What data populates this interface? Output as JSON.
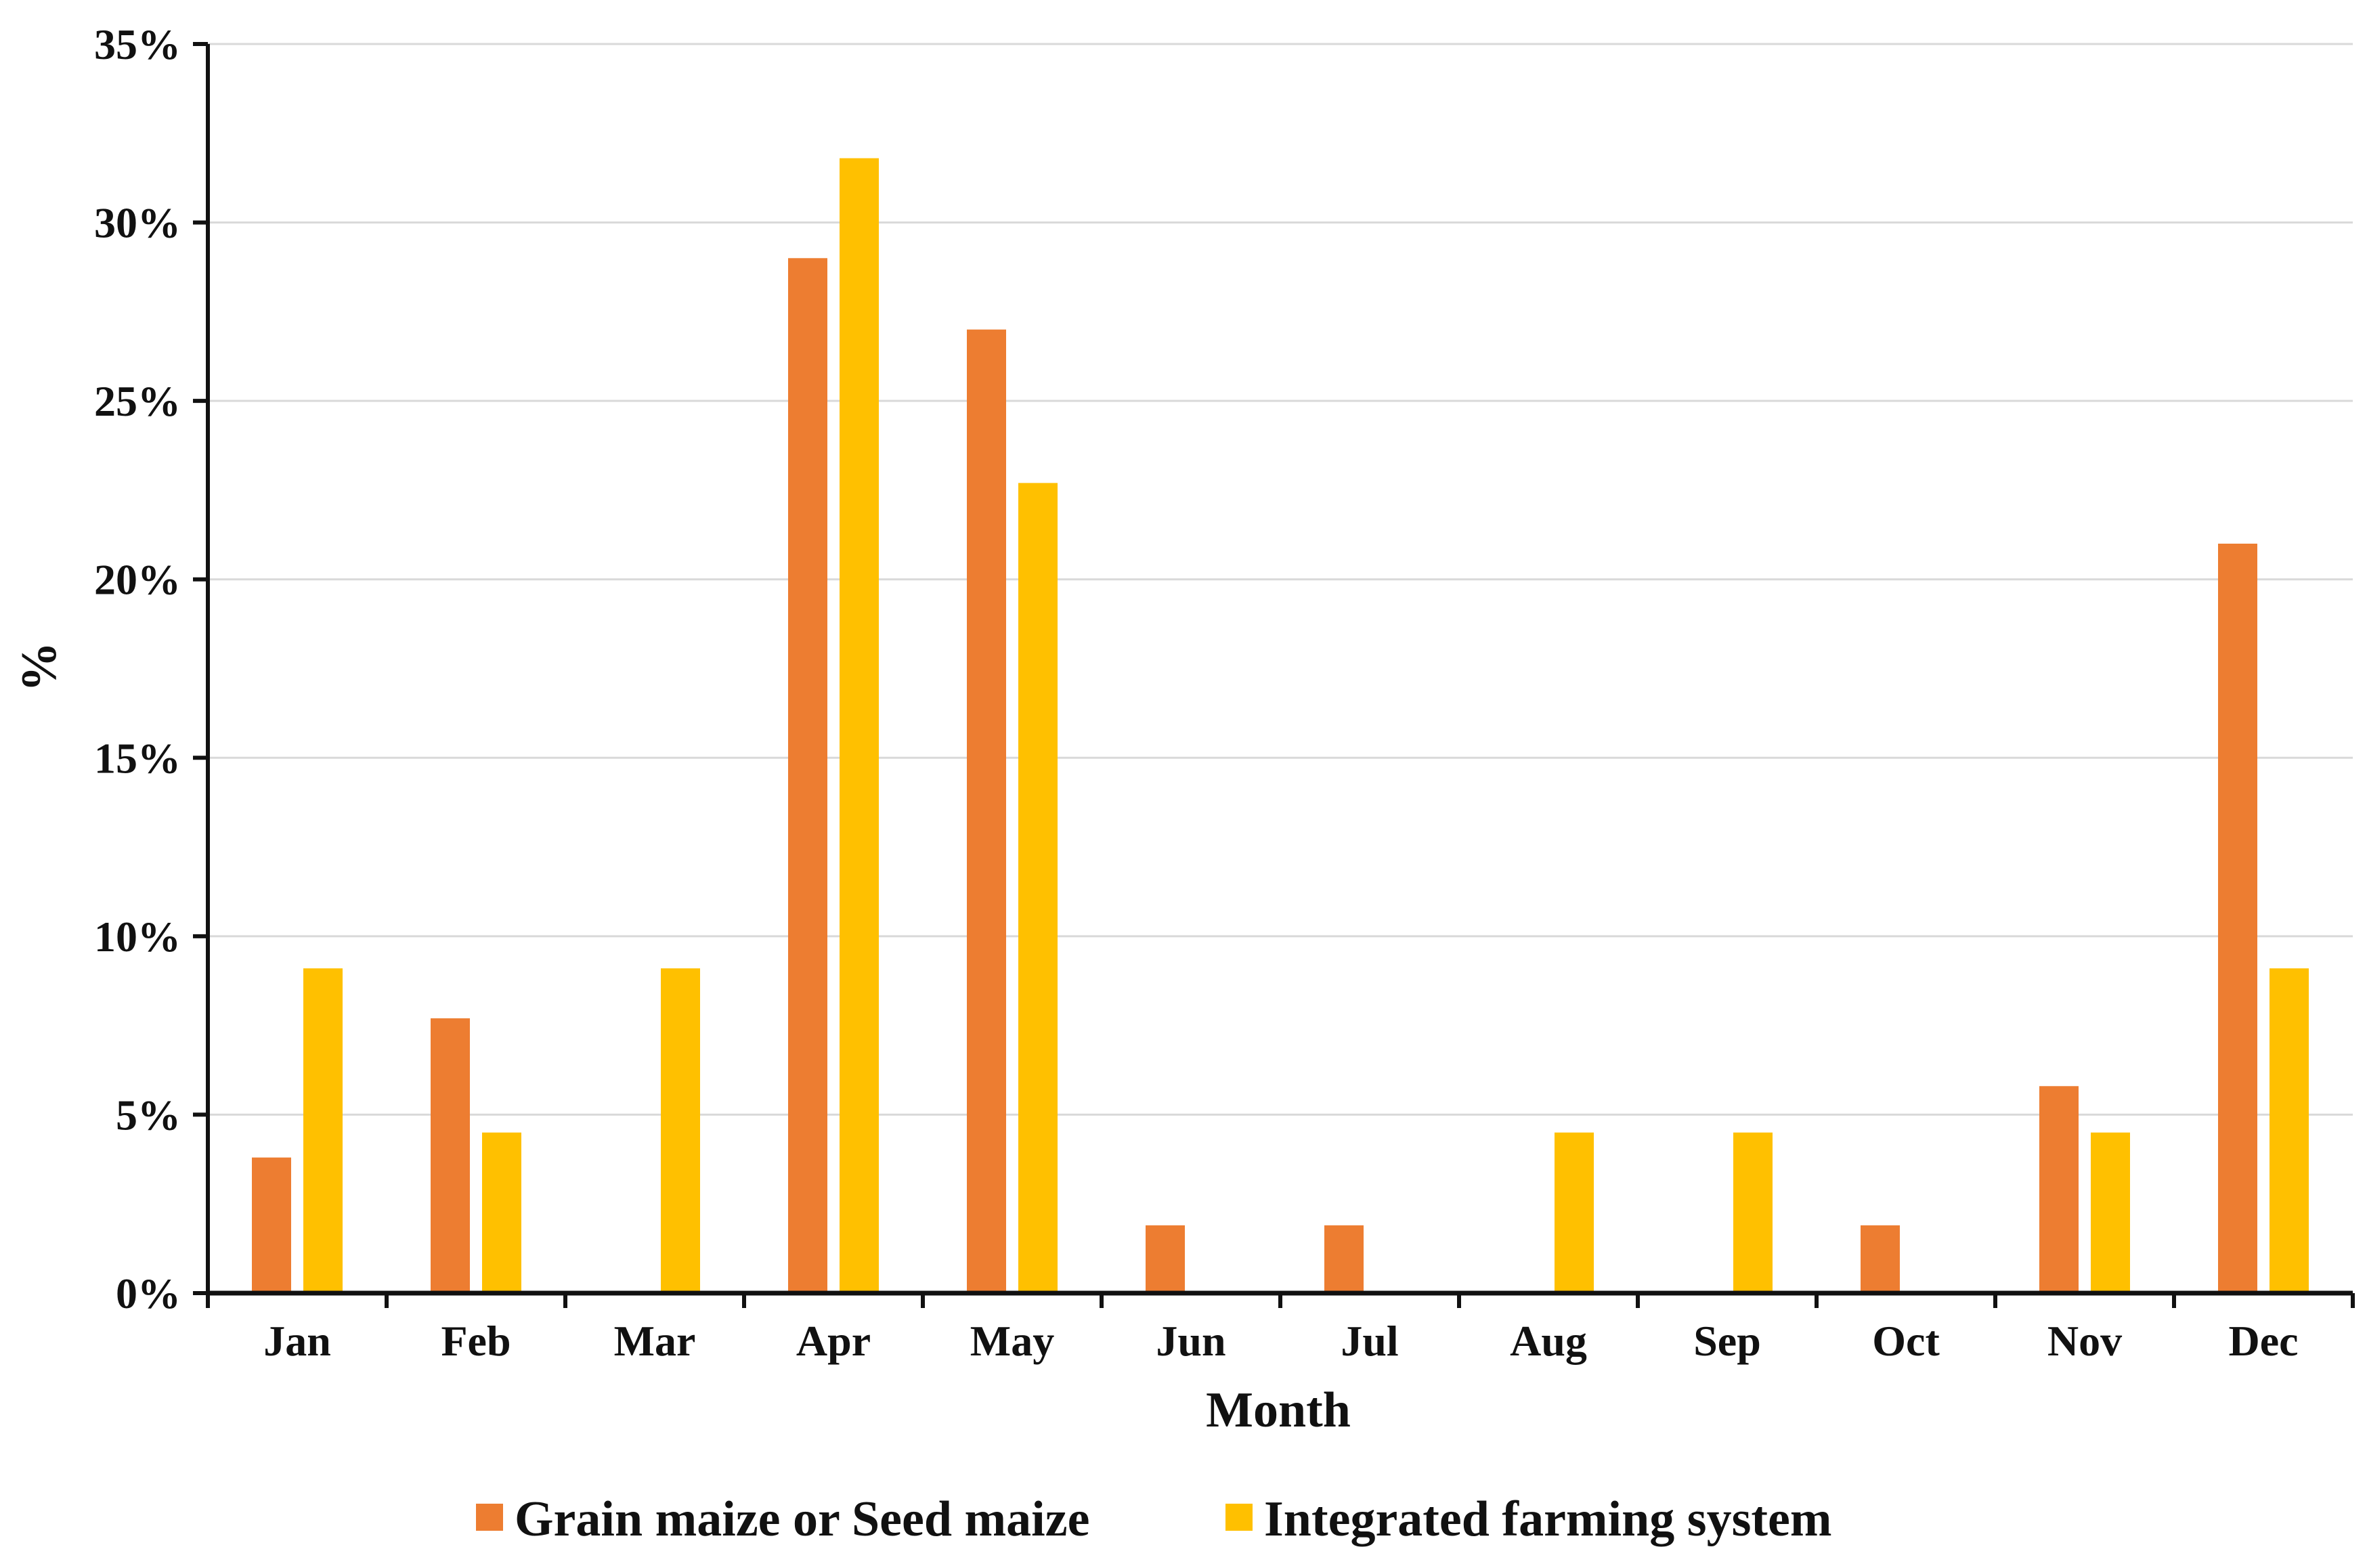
{
  "chart_data": {
    "type": "bar",
    "title": "",
    "xlabel": "Month",
    "ylabel": "%",
    "ylim": [
      0,
      35
    ],
    "ytick_values": [
      0,
      5,
      10,
      15,
      20,
      25,
      30,
      35
    ],
    "ytick_labels": [
      "0%",
      "5%",
      "10%",
      "15%",
      "20%",
      "25%",
      "30%",
      "35%"
    ],
    "grid": true,
    "legend_position": "bottom-center",
    "categories": [
      "Jan",
      "Feb",
      "Mar",
      "Apr",
      "May",
      "Jun",
      "Jul",
      "Aug",
      "Sep",
      "Oct",
      "Nov",
      "Dec"
    ],
    "series": [
      {
        "name": "Grain maize or Seed maize",
        "color": "#ED7D31",
        "values": [
          3.8,
          7.7,
          0,
          29.0,
          27.0,
          1.9,
          1.9,
          0,
          0,
          1.9,
          5.8,
          21.0
        ]
      },
      {
        "name": "Integrated farming system",
        "color": "#FFC000",
        "values": [
          9.1,
          4.5,
          9.1,
          31.8,
          22.7,
          0,
          0,
          4.5,
          4.5,
          0,
          4.5,
          9.1
        ]
      }
    ]
  }
}
